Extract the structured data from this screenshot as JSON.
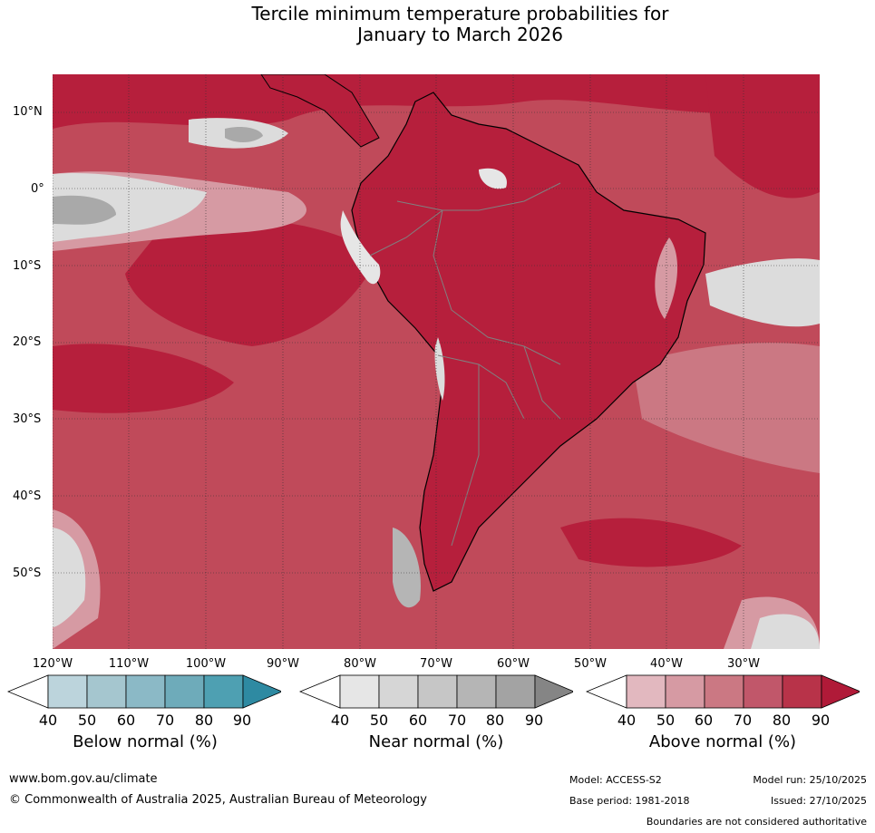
{
  "title": {
    "line1": "Tercile minimum temperature probabilities for",
    "line2": "January to March 2026"
  },
  "map": {
    "region": "South America",
    "lat_labels": [
      "10°N",
      "0°",
      "10°S",
      "20°S",
      "30°S",
      "40°S",
      "50°S"
    ],
    "lon_labels": [
      "120°W",
      "110°W",
      "100°W",
      "90°W",
      "80°W",
      "70°W",
      "60°W",
      "50°W",
      "40°W",
      "30°W"
    ],
    "colors": {
      "land_dominant": "#b61f3c",
      "ocean_base": "#c04a5a",
      "near_normal_light": "#dcdcdc",
      "near_normal_mid": "#b5b5b5",
      "coastline": "#000000",
      "borders": "#808080",
      "gridline": "#333333"
    }
  },
  "colorbars": [
    {
      "name": "Below normal",
      "label": "Below normal (%)",
      "ticks": [
        "40",
        "50",
        "60",
        "70",
        "80",
        "90"
      ],
      "colors": [
        "#bcd4dc",
        "#a5c6cf",
        "#8bb9c6",
        "#6eabba",
        "#4ea0b2",
        "#2e8aa2"
      ]
    },
    {
      "name": "Near normal",
      "label": "Near normal (%)",
      "ticks": [
        "40",
        "50",
        "60",
        "70",
        "80",
        "90"
      ],
      "colors": [
        "#e6e6e6",
        "#d6d6d6",
        "#c6c6c6",
        "#b5b5b5",
        "#a3a3a3",
        "#858585"
      ]
    },
    {
      "name": "Above normal",
      "label": "Above normal (%)",
      "ticks": [
        "40",
        "50",
        "60",
        "70",
        "80",
        "90"
      ],
      "colors": [
        "#e2b8bf",
        "#d69aa3",
        "#cb7883",
        "#c1576a",
        "#b83349",
        "#b01a38"
      ]
    }
  ],
  "footer": {
    "website": "www.bom.gov.au/climate",
    "copyright": "© Commonwealth of Australia 2025, Australian Bureau of Meteorology",
    "model": "Model: ACCESS-S2",
    "base_period": "Base period: 1981-2018",
    "model_run": "Model run: 25/10/2025",
    "issued": "Issued: 27/10/2025",
    "disclaimer": "Boundaries are not considered authoritative"
  }
}
